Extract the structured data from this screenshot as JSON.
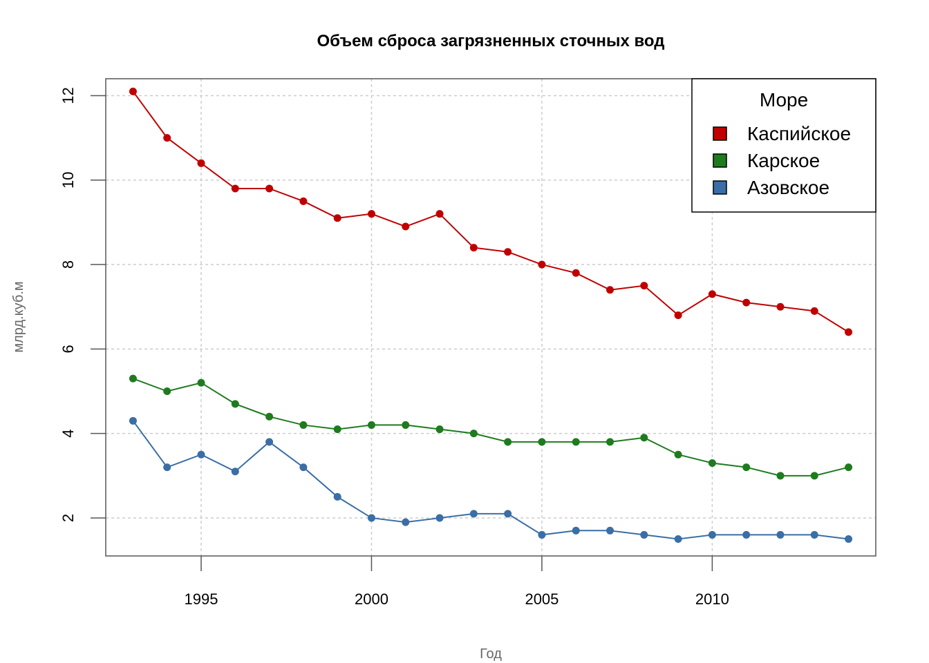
{
  "chart_data": {
    "type": "line",
    "title": "Объем сброса загрязненных сточных вод",
    "xlabel": "Год",
    "ylabel": "млрд.куб.м",
    "xlim": [
      1992.2,
      2014.8
    ],
    "ylim": [
      1.1,
      12.4
    ],
    "x_ticks": [
      1995,
      2000,
      2005,
      2010
    ],
    "y_ticks": [
      2,
      4,
      6,
      8,
      10,
      12
    ],
    "grid": true,
    "legend": {
      "title": "Море",
      "position": "top-right"
    },
    "x": [
      1993,
      1994,
      1995,
      1996,
      1997,
      1998,
      1999,
      2000,
      2001,
      2002,
      2003,
      2004,
      2005,
      2006,
      2007,
      2008,
      2009,
      2010,
      2011,
      2012,
      2013,
      2014
    ],
    "series": [
      {
        "name": "Каспийское",
        "color": "#c00000",
        "values": [
          12.1,
          11.0,
          10.4,
          9.8,
          9.8,
          9.5,
          9.1,
          9.2,
          8.9,
          9.2,
          8.4,
          8.3,
          8.0,
          7.8,
          7.4,
          7.5,
          6.8,
          7.3,
          7.1,
          7.0,
          6.9,
          6.4
        ]
      },
      {
        "name": "Карское",
        "color": "#1e7b1e",
        "values": [
          5.3,
          5.0,
          5.2,
          4.7,
          4.4,
          4.2,
          4.1,
          4.2,
          4.2,
          4.1,
          4.0,
          3.8,
          3.8,
          3.8,
          3.8,
          3.9,
          3.5,
          3.3,
          3.2,
          3.0,
          3.0,
          3.2
        ]
      },
      {
        "name": "Азовское",
        "color": "#3a6ea5",
        "values": [
          4.3,
          3.2,
          3.5,
          3.1,
          3.8,
          3.2,
          2.5,
          2.0,
          1.9,
          2.0,
          2.1,
          2.1,
          1.6,
          1.7,
          1.7,
          1.6,
          1.5,
          1.6,
          1.6,
          1.6,
          1.6,
          1.5
        ]
      }
    ]
  }
}
